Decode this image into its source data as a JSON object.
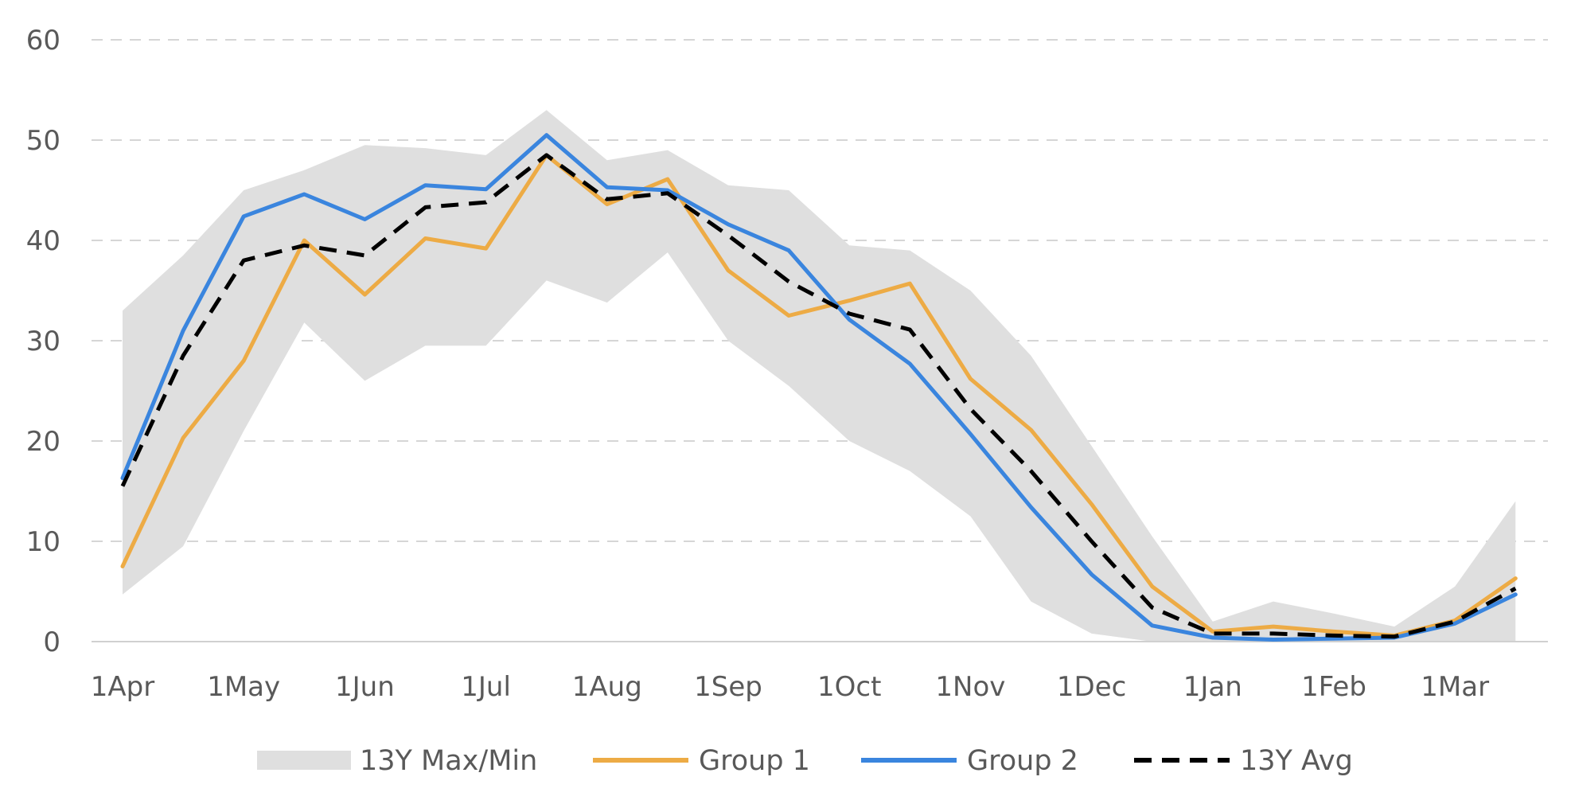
{
  "chart_data": {
    "type": "line",
    "x": [
      "1Apr",
      "16Apr",
      "1May",
      "16May",
      "1Jun",
      "16Jun",
      "1Jul",
      "16Jul",
      "1Aug",
      "16Aug",
      "1Sep",
      "16Sep",
      "1Oct",
      "16Oct",
      "1Nov",
      "16Nov",
      "1Dec",
      "16Dec",
      "1Jan",
      "16Jan",
      "1Feb",
      "16Feb",
      "1Mar",
      "16Mar"
    ],
    "x_tick_labels": [
      "1Apr",
      "1May",
      "1Jun",
      "1Jul",
      "1Aug",
      "1Sep",
      "1Oct",
      "1Nov",
      "1Dec",
      "1Jan",
      "1Feb",
      "1Mar"
    ],
    "y_tick_labels": [
      "0",
      "10",
      "20",
      "30",
      "40",
      "50",
      "60"
    ],
    "ylim": [
      0,
      60
    ],
    "grid": true,
    "legend_position": "bottom",
    "band": {
      "name": "13Y Max/Min",
      "color": "#dfdfdf",
      "max": [
        33,
        38.5,
        45,
        47,
        49.5,
        49.2,
        48.5,
        53,
        48,
        49,
        45.5,
        45,
        39.5,
        39,
        35,
        28.5,
        19.5,
        10.5,
        2,
        4,
        2.8,
        1.5,
        5.5,
        14
      ],
      "min": [
        4.7,
        9.5,
        21,
        31.8,
        26,
        29.5,
        29.5,
        36,
        33.8,
        38.8,
        30,
        25.5,
        20,
        17,
        12.5,
        4,
        0.8,
        0,
        0,
        0,
        0,
        0,
        0,
        0
      ]
    },
    "series": [
      {
        "name": "Group 1",
        "color": "#edab45",
        "style": "solid",
        "values": [
          7.5,
          20.3,
          28,
          40,
          34.6,
          40.2,
          39.2,
          48.5,
          43.6,
          46.1,
          37,
          32.5,
          34,
          35.7,
          26.2,
          21.1,
          13.7,
          5.5,
          1,
          1.5,
          1,
          0.6,
          2.1,
          6.3
        ]
      },
      {
        "name": "Group 2",
        "color": "#3a85de",
        "style": "solid",
        "values": [
          16.3,
          31,
          42.4,
          44.6,
          42.1,
          45.5,
          45.1,
          50.5,
          45.3,
          45,
          41.6,
          39,
          32.1,
          27.7,
          20.7,
          13.4,
          6.7,
          1.6,
          0.4,
          0.2,
          0.3,
          0.4,
          1.8,
          4.7
        ]
      },
      {
        "name": "13Y Avg",
        "color": "#000000",
        "style": "dashed",
        "values": [
          15.5,
          28.5,
          38,
          39.5,
          38.5,
          43.3,
          43.8,
          48.5,
          44.1,
          44.7,
          40.5,
          35.9,
          32.7,
          31.1,
          23.2,
          17,
          10,
          3.4,
          0.8,
          0.8,
          0.6,
          0.5,
          2,
          5.3
        ]
      }
    ]
  }
}
